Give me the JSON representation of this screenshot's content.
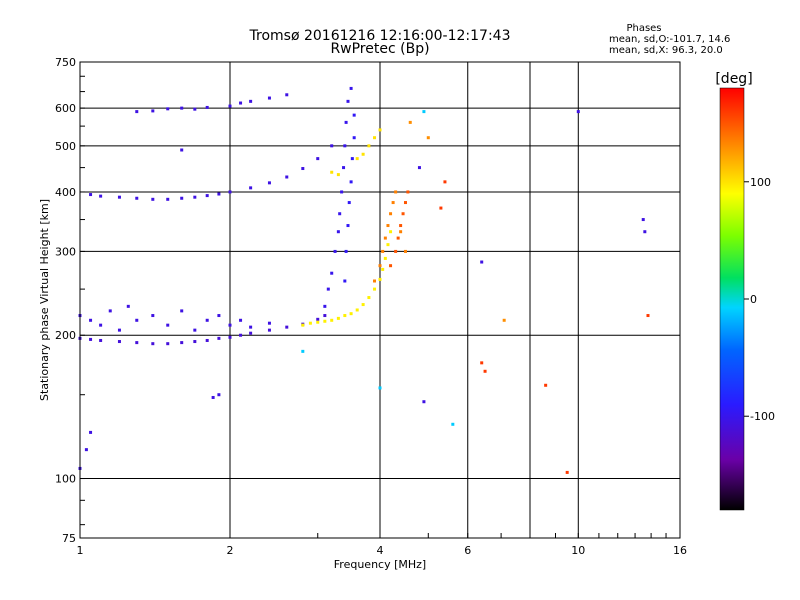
{
  "chart_data": {
    "type": "scatter",
    "title": "Tromsø 20161216 12:16:00-12:17:43",
    "subtitle": "RwPretec (Bp)",
    "xlabel": "Frequency [MHz]",
    "ylabel": "Stationary phase Virtual Height [km]",
    "xscale": "log",
    "yscale": "log",
    "xlim": [
      1,
      16
    ],
    "ylim": [
      75,
      750
    ],
    "xticks": [
      1,
      2,
      4,
      6,
      10,
      16
    ],
    "xtick_labels": [
      "1",
      "2",
      "4",
      "6",
      "10",
      "16"
    ],
    "xgrid": [
      2,
      4,
      6,
      8,
      10
    ],
    "yticks": [
      75,
      100,
      200,
      300,
      400,
      500,
      600,
      750
    ],
    "ytick_labels": [
      "75",
      "100",
      "200",
      "300",
      "400",
      "500",
      "600",
      "750"
    ],
    "ygrid": [
      100,
      200,
      300,
      400,
      500,
      600
    ],
    "grid": true,
    "phase_box": {
      "heading": "Phases",
      "line_o": "mean, sd,O:-101.7, 14.6",
      "line_x": "mean, sd,X:  96.3, 20.0"
    },
    "colorbar": {
      "label": "[deg]",
      "range": [
        -180,
        180
      ],
      "ticks": [
        100,
        0,
        -100
      ],
      "tick_labels": [
        "100",
        "0",
        "-100"
      ],
      "position": "right"
    },
    "traces": [
      {
        "name": "",
        "points": [
          [
            1.0,
            197
          ],
          [
            1.05,
            196
          ],
          [
            1.1,
            195
          ],
          [
            1.2,
            194
          ],
          [
            1.3,
            193
          ],
          [
            1.4,
            192
          ],
          [
            1.5,
            192
          ],
          [
            1.6,
            193
          ],
          [
            1.7,
            194
          ],
          [
            1.8,
            195
          ],
          [
            1.9,
            197
          ],
          [
            2.0,
            198
          ],
          [
            2.1,
            200
          ],
          [
            2.2,
            202
          ],
          [
            2.4,
            205
          ],
          [
            2.6,
            208
          ],
          [
            2.8,
            211
          ],
          [
            3.0,
            216
          ],
          [
            3.1,
            220
          ]
        ],
        "phase": -110
      },
      {
        "name": "",
        "points": [
          [
            1.0,
            220
          ],
          [
            1.05,
            215
          ],
          [
            1.1,
            210
          ],
          [
            1.15,
            225
          ],
          [
            1.2,
            205
          ],
          [
            1.25,
            230
          ],
          [
            1.3,
            215
          ],
          [
            1.4,
            220
          ],
          [
            1.5,
            210
          ],
          [
            1.6,
            225
          ],
          [
            1.7,
            205
          ],
          [
            1.8,
            215
          ],
          [
            1.9,
            220
          ],
          [
            2.0,
            210
          ],
          [
            2.1,
            215
          ],
          [
            2.2,
            208
          ],
          [
            2.4,
            212
          ]
        ],
        "phase": -105
      },
      {
        "name": "",
        "points": [
          [
            1.05,
            395
          ],
          [
            1.1,
            392
          ],
          [
            1.2,
            390
          ],
          [
            1.3,
            388
          ],
          [
            1.4,
            386
          ],
          [
            1.5,
            386
          ],
          [
            1.6,
            388
          ],
          [
            1.7,
            390
          ],
          [
            1.8,
            393
          ],
          [
            1.9,
            396
          ],
          [
            2.0,
            400
          ],
          [
            2.2,
            408
          ],
          [
            2.4,
            418
          ],
          [
            2.6,
            430
          ],
          [
            2.8,
            448
          ],
          [
            3.0,
            470
          ],
          [
            3.2,
            500
          ]
        ],
        "phase": -105
      },
      {
        "name": "",
        "points": [
          [
            1.3,
            590
          ],
          [
            1.4,
            592
          ],
          [
            1.5,
            598
          ],
          [
            1.6,
            600
          ],
          [
            1.7,
            597
          ],
          [
            1.8,
            602
          ],
          [
            2.0,
            606
          ],
          [
            2.1,
            615
          ],
          [
            2.2,
            620
          ],
          [
            2.4,
            630
          ],
          [
            2.6,
            640
          ]
        ],
        "phase": -105
      },
      {
        "name": "",
        "points": [
          [
            3.1,
            230
          ],
          [
            3.15,
            250
          ],
          [
            3.2,
            270
          ],
          [
            3.25,
            300
          ],
          [
            3.3,
            330
          ],
          [
            3.32,
            360
          ],
          [
            3.35,
            400
          ],
          [
            3.38,
            450
          ],
          [
            3.4,
            500
          ],
          [
            3.42,
            560
          ],
          [
            3.45,
            620
          ],
          [
            3.5,
            660
          ]
        ],
        "phase": -100
      },
      {
        "name": "",
        "points": [
          [
            3.4,
            260
          ],
          [
            3.42,
            300
          ],
          [
            3.45,
            340
          ],
          [
            3.47,
            380
          ],
          [
            3.5,
            420
          ],
          [
            3.52,
            470
          ],
          [
            3.55,
            520
          ],
          [
            3.55,
            580
          ]
        ],
        "phase": -95
      },
      {
        "name": "",
        "points": [
          [
            2.8,
            210
          ],
          [
            2.9,
            212
          ],
          [
            3.0,
            213
          ],
          [
            3.1,
            214
          ],
          [
            3.2,
            215
          ],
          [
            3.3,
            217
          ],
          [
            3.4,
            220
          ],
          [
            3.5,
            222
          ],
          [
            3.6,
            226
          ],
          [
            3.7,
            232
          ],
          [
            3.8,
            240
          ],
          [
            3.9,
            250
          ],
          [
            4.0,
            262
          ],
          [
            4.05,
            275
          ],
          [
            4.1,
            290
          ],
          [
            4.15,
            310
          ],
          [
            4.2,
            330
          ]
        ],
        "phase": 95
      },
      {
        "name": "",
        "points": [
          [
            3.9,
            260
          ],
          [
            4.0,
            280
          ],
          [
            4.05,
            300
          ],
          [
            4.1,
            320
          ],
          [
            4.15,
            340
          ],
          [
            4.2,
            360
          ],
          [
            4.25,
            380
          ],
          [
            4.3,
            400
          ],
          [
            4.4,
            330
          ],
          [
            4.5,
            300
          ]
        ],
        "phase": 135
      },
      {
        "name": "",
        "points": [
          [
            4.2,
            280
          ],
          [
            4.3,
            300
          ],
          [
            4.35,
            320
          ],
          [
            4.4,
            340
          ],
          [
            4.45,
            360
          ],
          [
            4.5,
            380
          ],
          [
            4.55,
            400
          ]
        ],
        "phase": 150
      },
      {
        "name": "",
        "points": [
          [
            3.7,
            480
          ],
          [
            3.8,
            500
          ],
          [
            3.9,
            520
          ],
          [
            4.0,
            540
          ],
          [
            3.6,
            470
          ],
          [
            3.3,
            435
          ],
          [
            3.2,
            440
          ]
        ],
        "phase": 100
      },
      {
        "name": "",
        "points": [
          [
            1.0,
            105
          ],
          [
            1.03,
            115
          ],
          [
            1.05,
            125
          ],
          [
            1.85,
            148
          ],
          [
            1.9,
            150
          ],
          [
            1.6,
            490
          ]
        ],
        "phase": -105
      },
      {
        "name": "",
        "points": [
          [
            6.4,
            175
          ],
          [
            6.5,
            168
          ],
          [
            8.6,
            157
          ],
          [
            9.5,
            103
          ],
          [
            13.8,
            220
          ],
          [
            5.3,
            370
          ],
          [
            5.4,
            420
          ]
        ],
        "phase": 160
      },
      {
        "name": "",
        "points": [
          [
            13.5,
            350
          ],
          [
            13.6,
            330
          ],
          [
            4.9,
            145
          ],
          [
            10.0,
            590
          ],
          [
            6.4,
            285
          ],
          [
            4.8,
            450
          ]
        ],
        "phase": -105
      },
      {
        "name": "",
        "points": [
          [
            5.6,
            130
          ],
          [
            4.0,
            155
          ],
          [
            2.8,
            185
          ],
          [
            4.9,
            590
          ]
        ],
        "phase": -10
      },
      {
        "name": "",
        "points": [
          [
            7.1,
            215
          ],
          [
            5.0,
            520
          ],
          [
            4.6,
            560
          ]
        ],
        "phase": 130
      }
    ]
  }
}
